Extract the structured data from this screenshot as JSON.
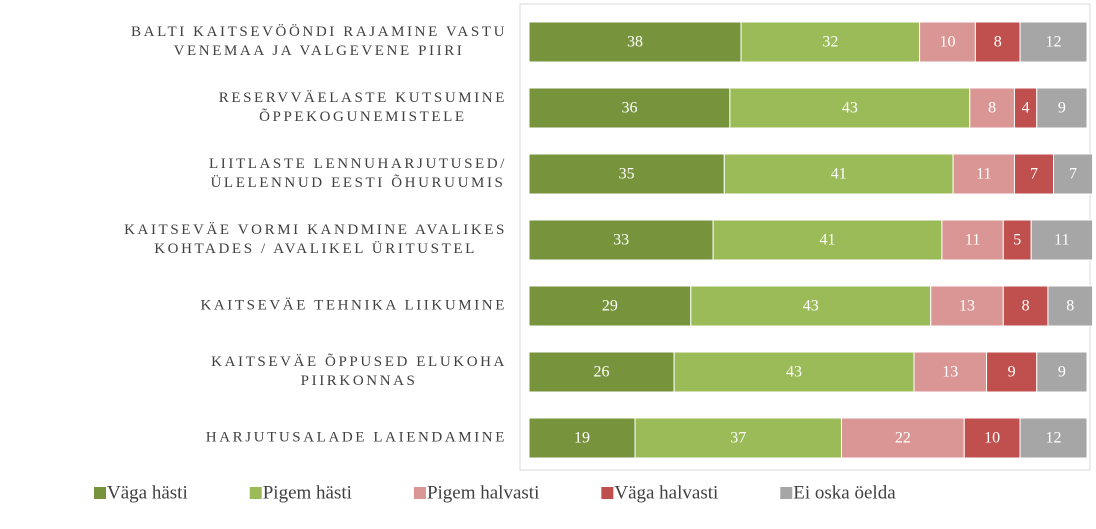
{
  "chart_data": {
    "type": "stacked_bar_horizontal",
    "categories": [
      [
        "BALTI KAITSEVÖÖNDI RAJAMINE VASTU",
        "VENEMAA JA VALGEVENE PIIRI"
      ],
      [
        "RESERVVÄELASTE KUTSUMINE",
        "ÕPPEKOGUNEMISTELE"
      ],
      [
        "LIITLASTE LENNUHARJUTUSED/",
        "ÜLELENNUD EESTI ÕHURUUMIS"
      ],
      [
        "KAITSEVÄE VORMI KANDMINE AVALIKES",
        "KOHTADES / AVALIKEL ÜRITUSTEL"
      ],
      [
        "KAITSEVÄE TEHNIKA LIIKUMINE"
      ],
      [
        "KAITSEVÄE ÕPPUSED ELUKOHA",
        "PIIRKONNAS"
      ],
      [
        "HARJUTUSALADE LAIENDAMINE"
      ]
    ],
    "series": [
      {
        "name": "Väga hästi",
        "color": "#77933c",
        "values": [
          38,
          36,
          35,
          33,
          29,
          26,
          19
        ]
      },
      {
        "name": "Pigem hästi",
        "color": "#9bbb59",
        "values": [
          32,
          43,
          41,
          41,
          43,
          43,
          37
        ]
      },
      {
        "name": "Pigem halvasti",
        "color": "#d99694",
        "values": [
          10,
          8,
          11,
          11,
          13,
          13,
          22
        ]
      },
      {
        "name": "Väga halvasti",
        "color": "#c0504d",
        "values": [
          8,
          4,
          7,
          5,
          8,
          9,
          10
        ]
      },
      {
        "name": "Ei oska öelda",
        "color": "#a6a6a6",
        "values": [
          12,
          9,
          7,
          11,
          8,
          9,
          12
        ]
      }
    ],
    "xlim": [
      0,
      100
    ],
    "legend": "bottom"
  }
}
